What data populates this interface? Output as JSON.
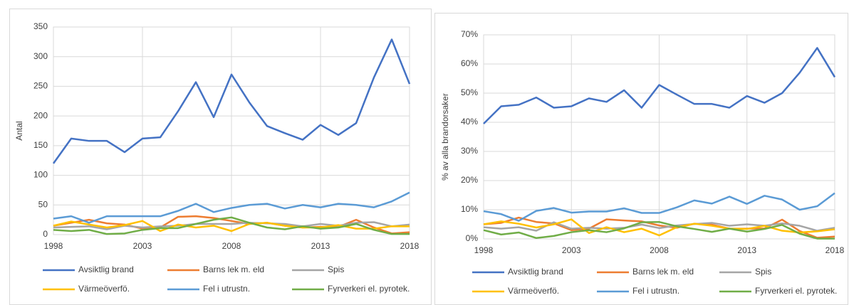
{
  "chart_data": [
    {
      "type": "line",
      "y_label": "Antal",
      "x": [
        1998,
        1999,
        2000,
        2001,
        2002,
        2003,
        2004,
        2005,
        2006,
        2007,
        2008,
        2009,
        2010,
        2011,
        2012,
        2013,
        2014,
        2015,
        2016,
        2017,
        2018
      ],
      "xlim": [
        1998,
        2018
      ],
      "xticks": [
        1998,
        2003,
        2008,
        2013,
        2018
      ],
      "ylim": [
        0,
        350
      ],
      "yticks": [
        0,
        50,
        100,
        150,
        200,
        250,
        300,
        350
      ],
      "grid": true,
      "series": [
        {
          "name": "Avsiktlig brand",
          "color": "#4472c4",
          "values": [
            120,
            162,
            158,
            158,
            139,
            162,
            164,
            208,
            257,
            198,
            270,
            223,
            183,
            171,
            160,
            185,
            168,
            188,
            265,
            329,
            254
          ]
        },
        {
          "name": "Barns lek m. eld",
          "color": "#ed7d31",
          "values": [
            15,
            20,
            25,
            19,
            17,
            10,
            12,
            30,
            31,
            28,
            23,
            18,
            20,
            15,
            12,
            13,
            13,
            25,
            12,
            2,
            4
          ]
        },
        {
          "name": "Spis",
          "color": "#a5a5a5",
          "values": [
            12,
            13,
            14,
            9,
            15,
            12,
            14,
            15,
            18,
            18,
            18,
            20,
            19,
            18,
            14,
            18,
            15,
            20,
            21,
            14,
            17
          ]
        },
        {
          "name": "Värmeöverfö.",
          "color": "#ffc000",
          "values": [
            15,
            22,
            17,
            12,
            16,
            23,
            6,
            17,
            12,
            15,
            6,
            18,
            20,
            15,
            12,
            12,
            16,
            10,
            10,
            14,
            14
          ]
        },
        {
          "name": "Fel i utrustn.",
          "color": "#5b9bd5",
          "values": [
            27,
            31,
            20,
            31,
            31,
            31,
            31,
            40,
            52,
            38,
            45,
            50,
            52,
            44,
            50,
            46,
            52,
            50,
            46,
            56,
            71
          ]
        },
        {
          "name": "Fyrverkeri el. pyrotek.",
          "color": "#70ad47",
          "values": [
            8,
            6,
            8,
            1,
            2,
            8,
            11,
            11,
            18,
            25,
            29,
            20,
            12,
            9,
            14,
            10,
            12,
            18,
            8,
            1,
            1
          ]
        }
      ]
    },
    {
      "type": "line",
      "y_label": "% av alla brandorsaker",
      "x": [
        1998,
        1999,
        2000,
        2001,
        2002,
        2003,
        2004,
        2005,
        2006,
        2007,
        2008,
        2009,
        2010,
        2011,
        2012,
        2013,
        2014,
        2015,
        2016,
        2017,
        2018
      ],
      "xlim": [
        1998,
        2018
      ],
      "xticks": [
        1998,
        2003,
        2008,
        2013,
        2018
      ],
      "ylim": [
        0,
        70
      ],
      "yticks": [
        {
          "value": 0,
          "label": "0%"
        },
        {
          "value": 10,
          "label": "10%"
        },
        {
          "value": 20,
          "label": "20%"
        },
        {
          "value": 30,
          "label": "30%"
        },
        {
          "value": 40,
          "label": "40%"
        },
        {
          "value": 50,
          "label": "50%"
        },
        {
          "value": 60,
          "label": "60%"
        },
        {
          "value": 70,
          "label": "70%"
        }
      ],
      "grid": true,
      "series": [
        {
          "name": "Avsiktlig brand",
          "color": "#4472c4",
          "values": [
            39.5,
            45.5,
            46,
            48.5,
            45,
            45.5,
            48.2,
            47,
            51,
            45,
            52.8,
            49.5,
            46.3,
            46.3,
            45,
            49,
            46.7,
            50,
            57,
            65.5,
            55.5
          ]
        },
        {
          "name": "Barns lek m. eld",
          "color": "#ed7d31",
          "values": [
            5,
            5.5,
            7.3,
            5.8,
            5.3,
            3,
            3.5,
            6.7,
            6.3,
            6,
            4.6,
            3.8,
            5.2,
            4.9,
            3.5,
            3.5,
            3.6,
            6.6,
            2.7,
            0.4,
            0.8
          ]
        },
        {
          "name": "Spis",
          "color": "#a5a5a5",
          "values": [
            4,
            3.5,
            4,
            2.8,
            5.7,
            3.5,
            3.8,
            3.5,
            3.8,
            4.9,
            3.7,
            4.6,
            5.1,
            5.5,
            4.5,
            5,
            4.5,
            5.3,
            4.5,
            2.8,
            3.8
          ]
        },
        {
          "name": "Värmeöverfö.",
          "color": "#ffc000",
          "values": [
            5,
            6,
            5.2,
            3.9,
            5,
            6.7,
            2,
            4,
            2.3,
            3.5,
            1.2,
            4,
            5.2,
            4.5,
            3.5,
            3.4,
            4.5,
            2.8,
            2.2,
            2.6,
            3.3
          ]
        },
        {
          "name": "Fel i utrustn.",
          "color": "#5b9bd5",
          "values": [
            9.5,
            8.5,
            6.2,
            9.6,
            10.6,
            9,
            9.4,
            9.4,
            10.5,
            8.9,
            8.9,
            10.8,
            13.2,
            12.1,
            14.5,
            12,
            14.8,
            13.5,
            10,
            11.2,
            15.7
          ]
        },
        {
          "name": "Fyrverkeri el. pyrotek.",
          "color": "#70ad47",
          "values": [
            3,
            1.5,
            2.2,
            0.3,
            1,
            2.3,
            3,
            2.3,
            3.6,
            5.7,
            5.8,
            4.3,
            3.4,
            2.4,
            3.5,
            2.5,
            3.4,
            4.8,
            1.8,
            0.1,
            0.1
          ]
        }
      ]
    }
  ]
}
